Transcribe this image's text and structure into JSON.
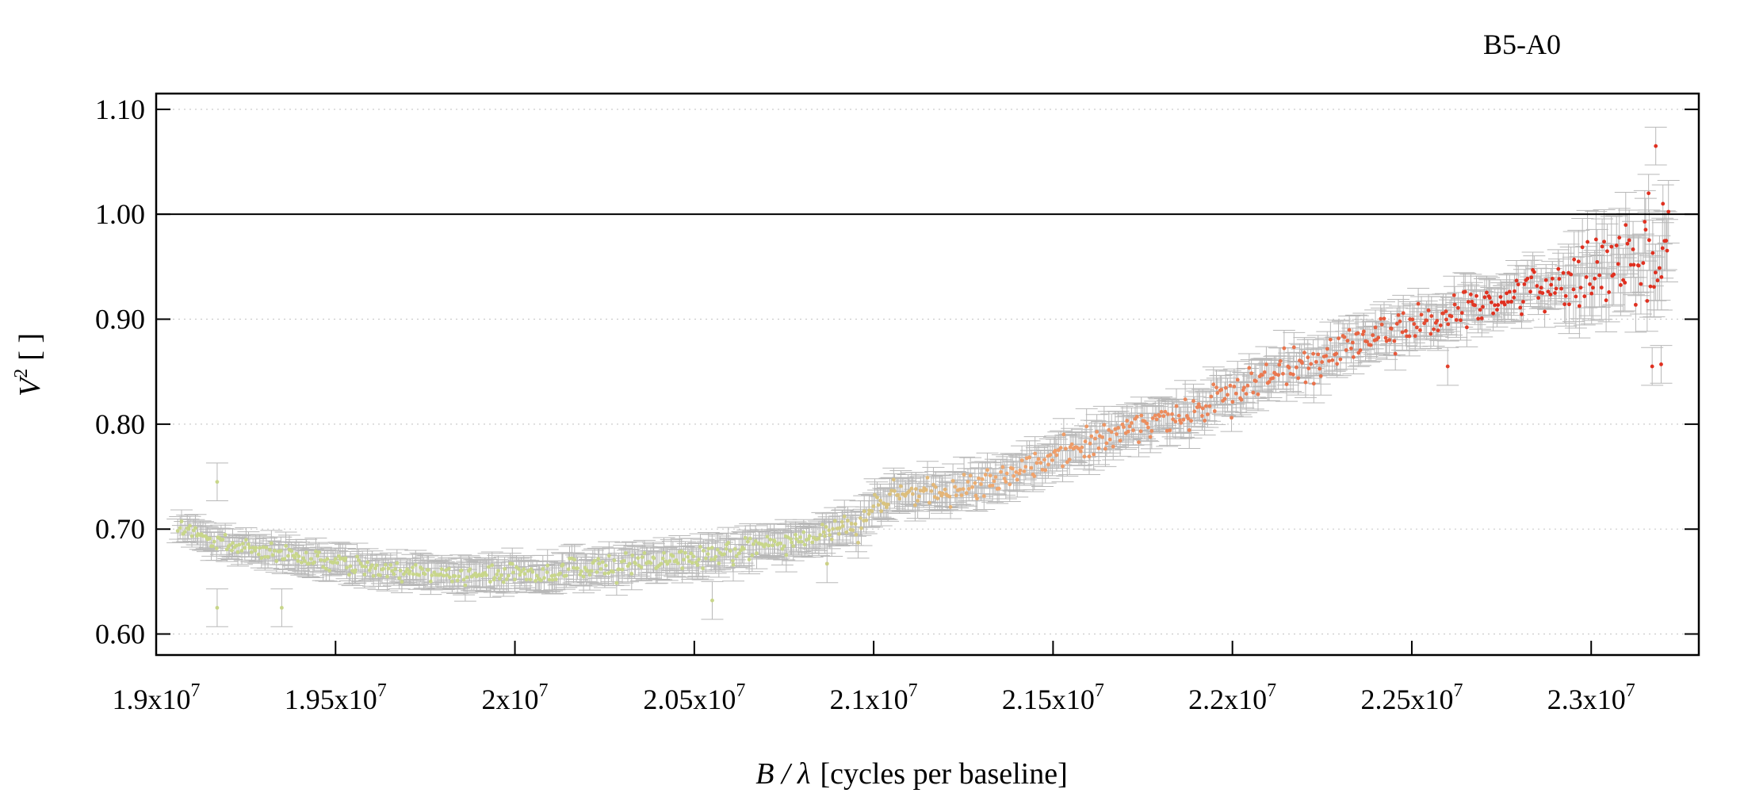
{
  "chart_data": {
    "type": "scatter",
    "title": "B5-A0",
    "xlabel": "B / λ [cycles per baseline]",
    "xlabel_parts": {
      "var": "B / λ",
      "rest": "[cycles per baseline]"
    },
    "ylabel": "V² [ ]",
    "ylabel_parts": {
      "var": "V",
      "sup": "2",
      "rest": "[ ]"
    },
    "xlim": [
      19000000,
      23300000
    ],
    "ylim": [
      0.58,
      1.115
    ],
    "x_ticks": [
      {
        "value": 19000000,
        "base": "1.9x10",
        "exp": "7"
      },
      {
        "value": 19500000,
        "base": "1.95x10",
        "exp": "7"
      },
      {
        "value": 20000000,
        "base": "2x10",
        "exp": "7"
      },
      {
        "value": 20500000,
        "base": "2.05x10",
        "exp": "7"
      },
      {
        "value": 21000000,
        "base": "2.1x10",
        "exp": "7"
      },
      {
        "value": 21500000,
        "base": "2.15x10",
        "exp": "7"
      },
      {
        "value": 22000000,
        "base": "2.2x10",
        "exp": "7"
      },
      {
        "value": 22500000,
        "base": "2.25x10",
        "exp": "7"
      },
      {
        "value": 23000000,
        "base": "2.3x10",
        "exp": "7"
      }
    ],
    "y_ticks": [
      {
        "value": 0.6,
        "label": "0.60"
      },
      {
        "value": 0.7,
        "label": "0.70"
      },
      {
        "value": 0.8,
        "label": "0.80"
      },
      {
        "value": 0.9,
        "label": "0.90"
      },
      {
        "value": 1.0,
        "label": "1.00"
      },
      {
        "value": 1.1,
        "label": "1.10"
      }
    ],
    "reference_line": 1.0,
    "grid": "horizontal dotted",
    "error_bars": true,
    "colors": {
      "low_freq": "#c8d68a",
      "mid_freq": "#f0a870",
      "high_freq": "#e03020",
      "error_bar": "#b8b8b8",
      "grid": "#cccccc"
    },
    "trend_nodes": [
      {
        "x": 19060000,
        "y": 0.7
      },
      {
        "x": 19200000,
        "y": 0.685
      },
      {
        "x": 19400000,
        "y": 0.672
      },
      {
        "x": 19600000,
        "y": 0.663
      },
      {
        "x": 19800000,
        "y": 0.658
      },
      {
        "x": 20000000,
        "y": 0.657
      },
      {
        "x": 20200000,
        "y": 0.662
      },
      {
        "x": 20400000,
        "y": 0.67
      },
      {
        "x": 20600000,
        "y": 0.68
      },
      {
        "x": 20800000,
        "y": 0.69
      },
      {
        "x": 20950000,
        "y": 0.705
      },
      {
        "x": 21050000,
        "y": 0.735
      },
      {
        "x": 21200000,
        "y": 0.735
      },
      {
        "x": 21350000,
        "y": 0.745
      },
      {
        "x": 21500000,
        "y": 0.77
      },
      {
        "x": 21700000,
        "y": 0.792
      },
      {
        "x": 21900000,
        "y": 0.815
      },
      {
        "x": 22100000,
        "y": 0.845
      },
      {
        "x": 22300000,
        "y": 0.87
      },
      {
        "x": 22500000,
        "y": 0.895
      },
      {
        "x": 22700000,
        "y": 0.915
      },
      {
        "x": 22900000,
        "y": 0.935
      },
      {
        "x": 23050000,
        "y": 0.95
      },
      {
        "x": 23200000,
        "y": 0.965
      }
    ],
    "n_points": 900,
    "outliers": [
      {
        "x": 23180000,
        "y": 1.065
      },
      {
        "x": 23160000,
        "y": 1.02
      },
      {
        "x": 23200000,
        "y": 1.01
      },
      {
        "x": 23170000,
        "y": 0.855
      },
      {
        "x": 23195000,
        "y": 0.857
      },
      {
        "x": 22600000,
        "y": 0.855
      },
      {
        "x": 19170000,
        "y": 0.745
      },
      {
        "x": 19350000,
        "y": 0.625
      },
      {
        "x": 19170000,
        "y": 0.625
      },
      {
        "x": 20550000,
        "y": 0.632
      },
      {
        "x": 20870000,
        "y": 0.667
      }
    ]
  }
}
